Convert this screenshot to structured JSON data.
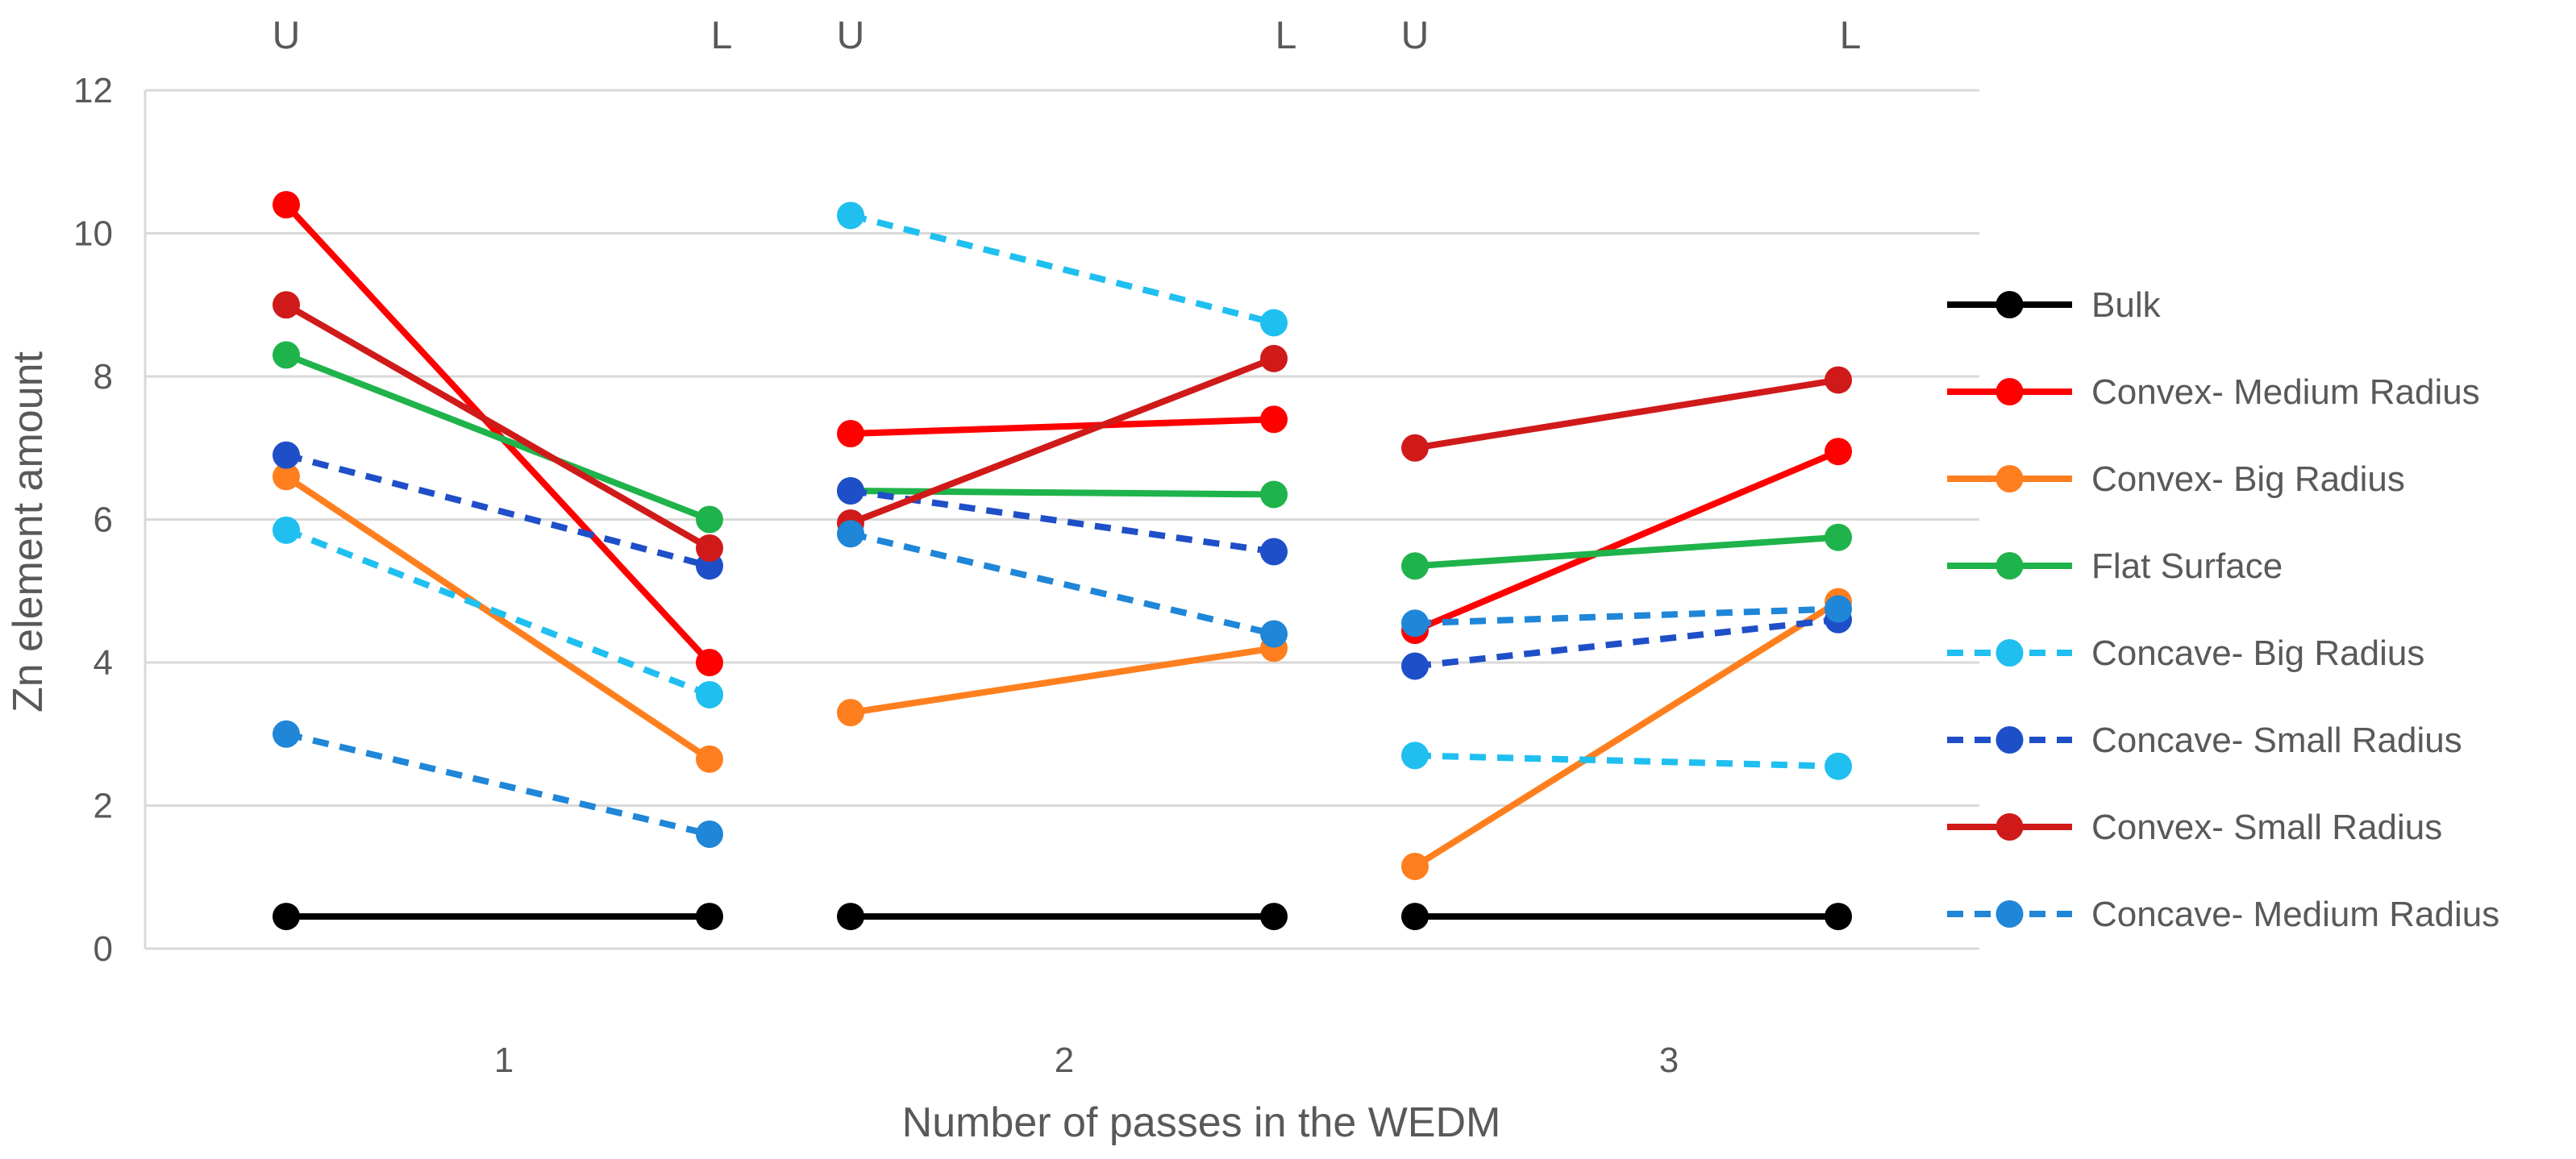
{
  "chart_data": {
    "type": "line",
    "title": "",
    "xlabel": "Number of passes in the WEDM",
    "ylabel": "Zn element amount",
    "ylim": [
      0,
      12
    ],
    "yticks": [
      0,
      2,
      4,
      6,
      8,
      10,
      12
    ],
    "grid": true,
    "legend_position": "right",
    "groups": [
      "1",
      "2",
      "3"
    ],
    "point_labels": [
      "U",
      "L"
    ],
    "series": [
      {
        "name": "Bulk",
        "color": "#000000",
        "dashed": false,
        "values": [
          [
            0.45,
            0.45
          ],
          [
            0.45,
            0.45
          ],
          [
            0.45,
            0.45
          ]
        ]
      },
      {
        "name": "Convex- Medium Radius",
        "color": "#FF0000",
        "dashed": false,
        "values": [
          [
            10.4,
            4.0
          ],
          [
            7.2,
            7.4
          ],
          [
            4.45,
            6.95
          ]
        ]
      },
      {
        "name": "Convex- Big Radius",
        "color": "#FF7F1F",
        "dashed": false,
        "values": [
          [
            6.6,
            2.65
          ],
          [
            3.3,
            4.2
          ],
          [
            1.15,
            4.85
          ]
        ]
      },
      {
        "name": "Flat Surface",
        "color": "#1FB34B",
        "dashed": false,
        "values": [
          [
            8.3,
            6.0
          ],
          [
            6.4,
            6.35
          ],
          [
            5.35,
            5.75
          ]
        ]
      },
      {
        "name": "Concave- Big Radius",
        "color": "#1FBFF0",
        "dashed": true,
        "values": [
          [
            5.85,
            3.55
          ],
          [
            10.25,
            8.75
          ],
          [
            2.7,
            2.55
          ]
        ]
      },
      {
        "name": "Concave- Small Radius",
        "color": "#1F4FC8",
        "dashed": true,
        "values": [
          [
            6.9,
            5.35
          ],
          [
            6.4,
            5.55
          ],
          [
            3.95,
            4.6
          ]
        ]
      },
      {
        "name": "Convex- Small Radius",
        "color": "#D01A1A",
        "dashed": false,
        "values": [
          [
            9.0,
            5.6
          ],
          [
            5.95,
            8.25
          ],
          [
            7.0,
            7.95
          ]
        ]
      },
      {
        "name": "Concave- Medium Radius",
        "color": "#1F86D8",
        "dashed": true,
        "values": [
          [
            3.0,
            1.6
          ],
          [
            5.8,
            4.4
          ],
          [
            4.55,
            4.75
          ]
        ]
      }
    ]
  }
}
